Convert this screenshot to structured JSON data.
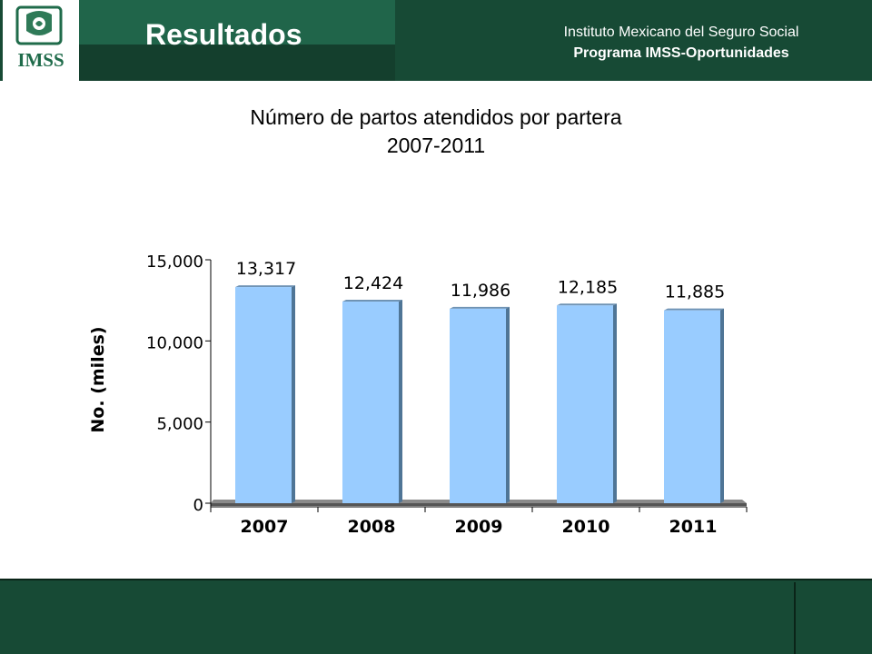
{
  "header": {
    "title": "Resultados",
    "org_name": "Instituto Mexicano del Seguro Social",
    "program": "Programa IMSS-Oportunidades",
    "logo_text": "IMSS"
  },
  "colors": {
    "header_green": "#174a35",
    "title_band": "#20654a",
    "bar_fill": "#99ccff",
    "bar_side": "#4f7596"
  },
  "chart_data": {
    "type": "bar",
    "title": "Número de partos atendidos por partera",
    "subtitle": "2007-2011",
    "ylabel": "No. (miles)",
    "xlabel": "",
    "categories": [
      "2007",
      "2008",
      "2009",
      "2010",
      "2011"
    ],
    "values": [
      13317,
      12424,
      11986,
      12185,
      11885
    ],
    "value_labels": [
      "13,317",
      "12,424",
      "11,986",
      "12,185",
      "11,885"
    ],
    "ylim": [
      0,
      15000
    ],
    "yticks": [
      0,
      5000,
      10000,
      15000
    ],
    "ytick_labels": [
      "0",
      "5,000",
      "10,000",
      "15,000"
    ],
    "grid": false,
    "legend": "none"
  }
}
